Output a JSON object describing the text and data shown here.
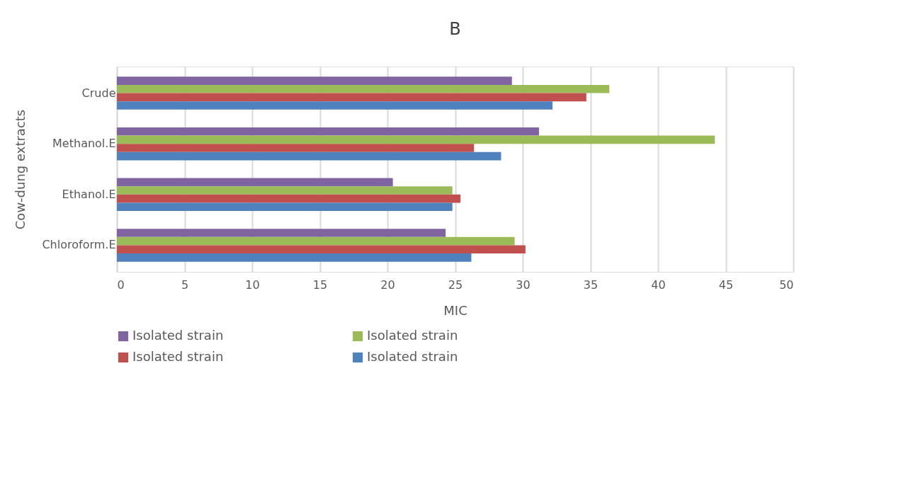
{
  "chart_data": {
    "type": "bar",
    "orientation": "horizontal",
    "title": "B",
    "xlabel": "MIC",
    "ylabel": "Cow-dung extracts",
    "categories": [
      "Crude",
      "Methanol.E",
      "Ethanol.E",
      "Chloroform.E"
    ],
    "series": [
      {
        "name": "Isolated strain",
        "color": "#8064a2",
        "values": [
          29.2,
          31.2,
          20.4,
          24.3
        ]
      },
      {
        "name": "Isolated strain",
        "color": "#9bbb59",
        "values": [
          36.4,
          44.2,
          24.8,
          29.4
        ]
      },
      {
        "name": "Isolated strain",
        "color": "#c0504d",
        "values": [
          34.7,
          26.4,
          25.4,
          30.2
        ]
      },
      {
        "name": "Isolated strain",
        "color": "#4f81bd",
        "values": [
          32.2,
          28.4,
          24.8,
          26.2
        ]
      }
    ],
    "xlim": [
      0,
      50
    ],
    "xticks": [
      0,
      5,
      10,
      15,
      20,
      25,
      30,
      35,
      40,
      45,
      50
    ],
    "grid": "x",
    "legend": "bottom"
  }
}
